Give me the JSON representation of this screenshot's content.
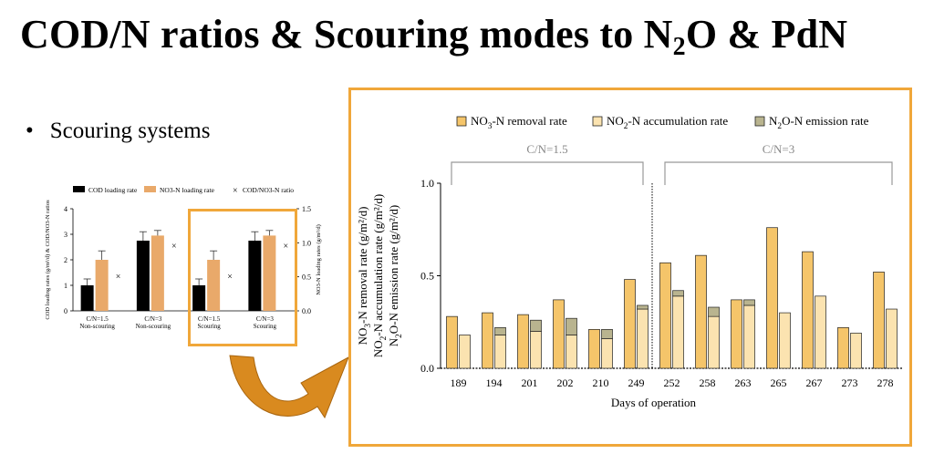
{
  "slide": {
    "title_part1": "COD/N ratios & Scouring modes to N",
    "title_sub": "2",
    "title_part2": "O & PdN",
    "bullet_symbol": "•",
    "bullet_text": "Scouring systems"
  },
  "colors": {
    "accent_orange": "#f0a73a",
    "arrow_orange": "#d98a1f",
    "cod_bar": "#000000",
    "no3_bar_left": "#e9a96a",
    "no3_removal": "#f5c56a",
    "no2_accum": "#fbe3b0",
    "n2o_emission": "#b9b48f"
  },
  "chart_data": [
    {
      "type": "bar",
      "categories": [
        "C/N=1.5\nNon-scouring",
        "C/N=3\nNon-scouring",
        "C/N=1.5\nScouring",
        "C/N=3\nScouring"
      ],
      "category_lines": [
        [
          "C/N=1.5",
          "Non-scouring"
        ],
        [
          "C/N=3",
          "Non-scouring"
        ],
        [
          "C/N=1.5",
          "Scouring"
        ],
        [
          "C/N=3",
          "Scouring"
        ]
      ],
      "series": [
        {
          "name": "COD loading rate",
          "axis": "left",
          "values": [
            1.0,
            2.75,
            1.0,
            2.75
          ],
          "errors": [
            0.25,
            0.35,
            0.25,
            0.35
          ]
        },
        {
          "name": "NO3-N loading rate",
          "axis": "left",
          "values": [
            2.0,
            2.95,
            2.0,
            2.95
          ],
          "errors": [
            0.35,
            0.2,
            0.35,
            0.2
          ]
        },
        {
          "name": "COD/NO3-N ratio",
          "axis": "right",
          "marker": "×",
          "values": [
            0.5,
            0.95,
            0.5,
            0.95
          ]
        }
      ],
      "legend": [
        "COD loading rate",
        "NO3-N loading rate",
        "COD/NO3-N ratio"
      ],
      "ylabel_left": "COD loading rates (g/m²/d) & COD/NO3-N ratios",
      "ylabel_right": "NO3-N loading rates (g/m²/d)",
      "ylim_left": [
        0,
        4
      ],
      "yticks_left": [
        "0",
        "1",
        "2",
        "3",
        "4"
      ],
      "ylim_right": [
        0,
        1.5
      ],
      "yticks_right": [
        "0.0",
        "0.5",
        "1.0",
        "1.5"
      ],
      "highlighted_categories": [
        2,
        3
      ]
    },
    {
      "type": "bar",
      "categories": [
        "189",
        "194",
        "201",
        "202",
        "210",
        "249",
        "252",
        "258",
        "263",
        "265",
        "267",
        "273",
        "278"
      ],
      "series": [
        {
          "name": "NO3-N removal rate",
          "values": [
            0.28,
            0.3,
            0.29,
            0.37,
            0.21,
            0.48,
            0.57,
            0.61,
            0.37,
            0.76,
            0.63,
            0.22,
            0.52
          ]
        },
        {
          "name": "NO2-N accumulation rate",
          "values": [
            0.18,
            0.18,
            0.2,
            0.18,
            0.16,
            0.32,
            0.39,
            0.28,
            0.34,
            0.3,
            0.39,
            0.19,
            0.32
          ]
        },
        {
          "name": "N2O-N emission rate",
          "stacked_on": "NO2-N accumulation rate",
          "values": [
            0.0,
            0.04,
            0.06,
            0.09,
            0.05,
            0.02,
            0.03,
            0.05,
            0.03,
            0.0,
            0.0,
            0.0,
            0.0
          ]
        }
      ],
      "legend": [
        {
          "pre": "NO",
          "sub": "3",
          "post": "-N removal rate"
        },
        {
          "pre": "NO",
          "sub": "2",
          "post": "-N accumulation rate"
        },
        {
          "pre": "N",
          "sub": "2",
          "post": "O-N emission rate"
        }
      ],
      "groups": [
        {
          "label": "C/N=1.5",
          "from": 0,
          "to": 5
        },
        {
          "label": "C/N=3",
          "from": 6,
          "to": 12
        }
      ],
      "xlabel": "Days of operation",
      "ylabel_lines": [
        "NO3-N removal rate (g/m²/d)",
        "NO2-N accumulation rate (g/m²/d)",
        "N2O-N emission rate (g/m²/d)"
      ],
      "ylim": [
        0,
        1.0
      ],
      "yticks": [
        "0.0",
        "0.5",
        "1.0"
      ]
    }
  ]
}
